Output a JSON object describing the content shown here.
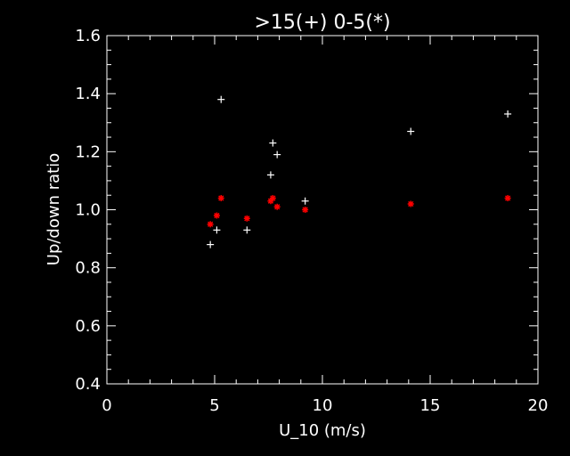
{
  "chart_data": {
    "type": "scatter",
    "title": ">15(+)  0-5(*)",
    "xlabel": "U_10 (m/s)",
    "ylabel": "Up/down ratio",
    "xlim": [
      0,
      20
    ],
    "ylim": [
      0.4,
      1.6
    ],
    "x_ticks": [
      "0",
      "5",
      "10",
      "15",
      "20"
    ],
    "y_ticks": [
      "0.4",
      "0.6",
      "0.8",
      "1.0",
      "1.2",
      "1.4",
      "1.6"
    ],
    "background": "#000000",
    "axis_color": "#ffffff",
    "series": [
      {
        "marker": "plus",
        "color": "#ffffff",
        "points": [
          [
            4.8,
            0.88
          ],
          [
            5.1,
            0.93
          ],
          [
            5.3,
            1.38
          ],
          [
            6.5,
            0.93
          ],
          [
            7.6,
            1.12
          ],
          [
            7.7,
            1.23
          ],
          [
            7.9,
            1.19
          ],
          [
            9.2,
            1.03
          ],
          [
            14.1,
            1.27
          ],
          [
            18.6,
            1.33
          ]
        ]
      },
      {
        "marker": "asterisk",
        "color": "#ff0000",
        "points": [
          [
            4.8,
            0.95
          ],
          [
            5.1,
            0.98
          ],
          [
            5.3,
            1.04
          ],
          [
            6.5,
            0.97
          ],
          [
            7.6,
            1.03
          ],
          [
            7.7,
            1.04
          ],
          [
            7.9,
            1.01
          ],
          [
            9.2,
            1.0
          ],
          [
            14.1,
            1.02
          ],
          [
            18.6,
            1.04
          ]
        ]
      }
    ]
  }
}
